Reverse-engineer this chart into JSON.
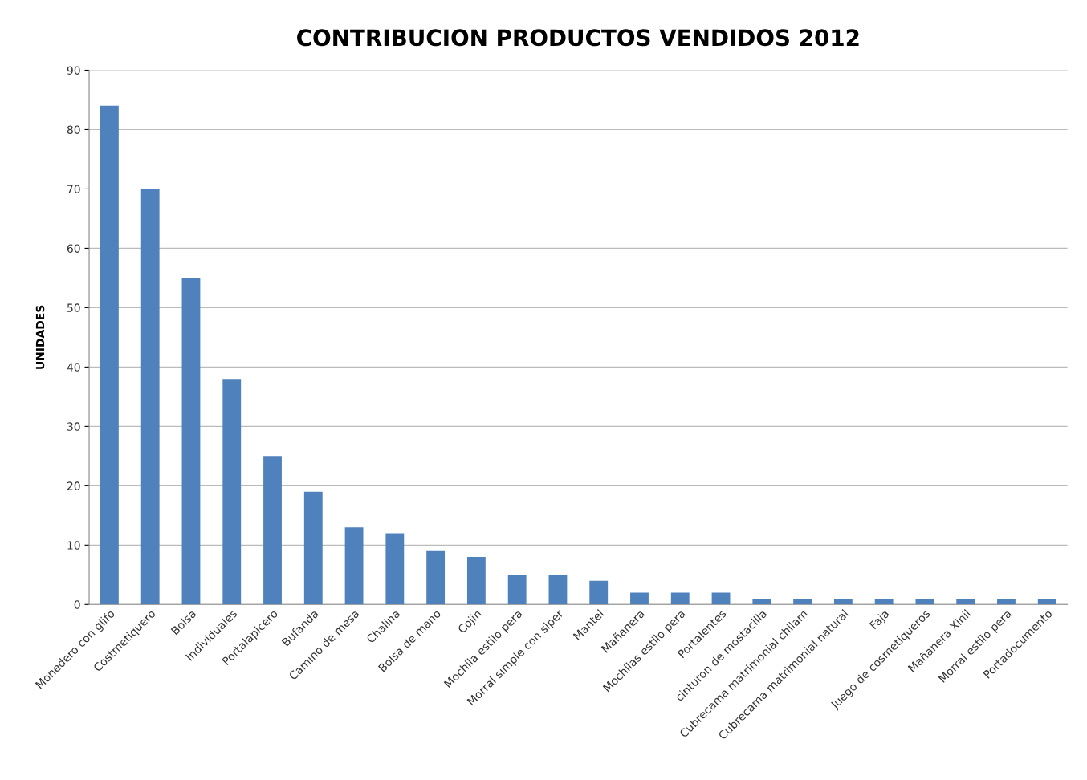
{
  "chart_data": {
    "type": "bar",
    "title": "CONTRIBUCION PRODUCTOS VENDIDOS 2012",
    "ylabel": "UNIDADES",
    "categories": [
      "Monedero con glifo",
      "Costmetiquero",
      "Bolsa",
      "Individuales",
      "Portalapicero",
      "Bufanda",
      "Camino de mesa",
      "Chalina",
      "Bolsa de mano",
      "Cojin",
      "Mochila estilo pera",
      "Morral simple con siper",
      "Mantel",
      "Mañanera",
      "Mochilas estilo pera",
      "Portalentes",
      "cinturon de mostacilla",
      "Cubrecama matrimonial chilam",
      "Cubrecama matrimonial natural",
      "Faja",
      "Juego de cosmetiqueros",
      "Mañanera Xinil",
      "Morral estilo pera",
      "Portadocumento"
    ],
    "values": [
      84,
      70,
      55,
      38,
      25,
      19,
      13,
      12,
      9,
      8,
      5,
      5,
      4,
      2,
      2,
      2,
      1,
      1,
      1,
      1,
      1,
      1,
      1,
      1
    ],
    "color": "#4f81bd",
    "ylim": [
      0,
      90
    ],
    "yticks": [
      0,
      10,
      20,
      30,
      40,
      50,
      60,
      70,
      80,
      90
    ],
    "grid": "y"
  }
}
